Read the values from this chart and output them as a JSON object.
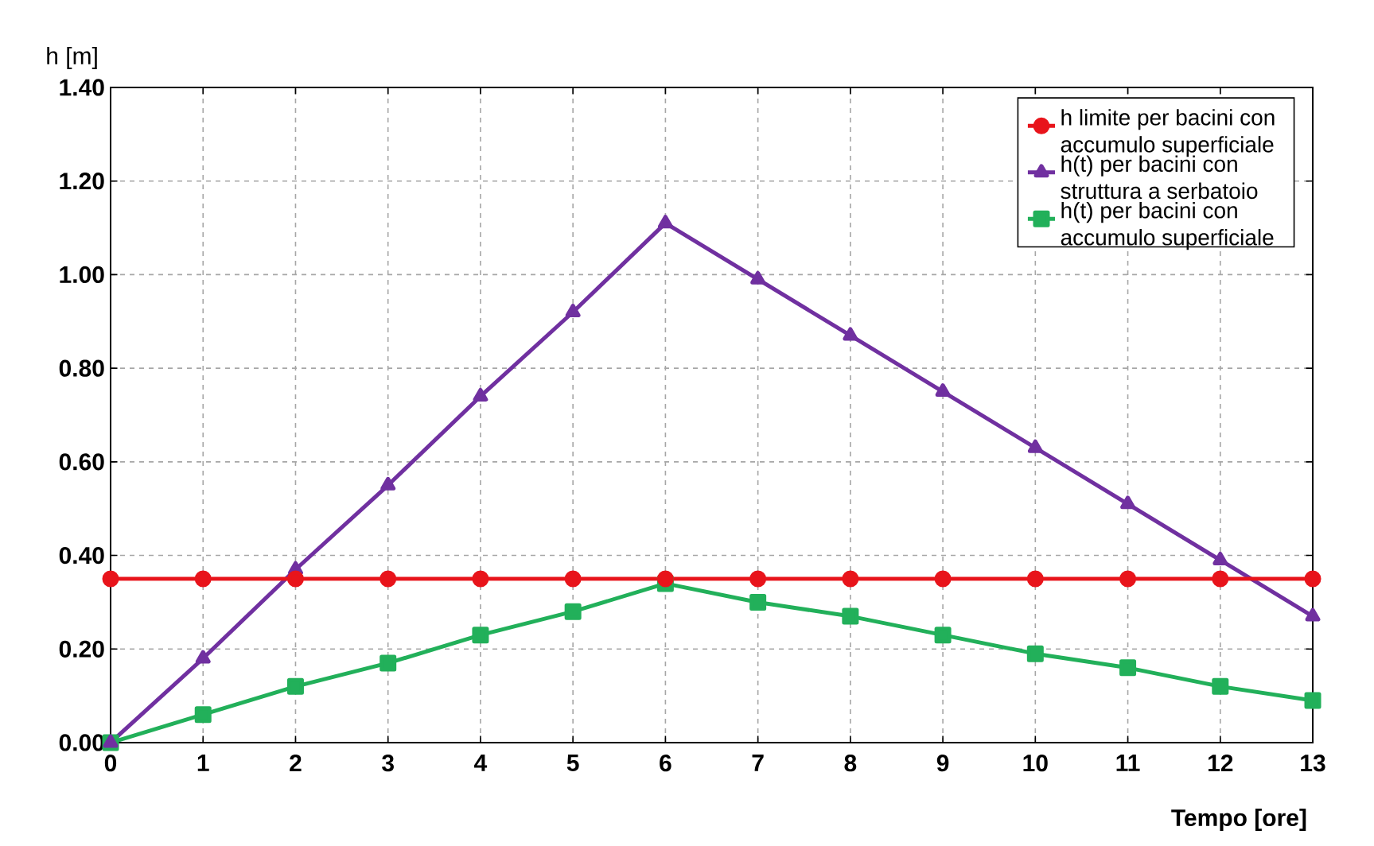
{
  "chart_data": {
    "type": "line",
    "xlabel": "Tempo [ore]",
    "ylabel": "h [m]",
    "x": [
      0,
      1,
      2,
      3,
      4,
      5,
      6,
      7,
      8,
      9,
      10,
      11,
      12,
      13
    ],
    "series": [
      {
        "name": "h limite per bacini con accumulo superficiale",
        "color": "#e8141b",
        "marker": "circle",
        "values": [
          0.35,
          0.35,
          0.35,
          0.35,
          0.35,
          0.35,
          0.35,
          0.35,
          0.35,
          0.35,
          0.35,
          0.35,
          0.35,
          0.35
        ]
      },
      {
        "name": "h(t) per bacini con struttura a serbatoio",
        "color": "#7030a0",
        "marker": "triangle",
        "values": [
          0,
          0.18,
          0.37,
          0.55,
          0.74,
          0.92,
          1.11,
          0.99,
          0.87,
          0.75,
          0.63,
          0.51,
          0.39,
          0.27
        ]
      },
      {
        "name": "h(t) per bacini con accumulo superficiale",
        "color": "#22b05a",
        "marker": "square",
        "values": [
          0,
          0.06,
          0.12,
          0.17,
          0.23,
          0.28,
          0.34,
          0.3,
          0.27,
          0.23,
          0.19,
          0.16,
          0.12,
          0.09
        ]
      }
    ],
    "xlim": [
      0,
      13
    ],
    "xticks": [
      0,
      1,
      2,
      3,
      4,
      5,
      6,
      7,
      8,
      9,
      10,
      11,
      12,
      13
    ],
    "ylim": [
      0,
      1.4
    ],
    "yticks": [
      {
        "value": 0,
        "label": "0.00"
      },
      {
        "value": 0.2,
        "label": "0.20"
      },
      {
        "value": 0.4,
        "label": "0.40"
      },
      {
        "value": 0.6,
        "label": "0.60"
      },
      {
        "value": 0.8,
        "label": "0.80"
      },
      {
        "value": 1.0,
        "label": "1.00"
      },
      {
        "value": 1.2,
        "label": "1.20"
      },
      {
        "value": 1.4,
        "label": "1.40"
      }
    ],
    "grid": true,
    "legend": "top right"
  }
}
